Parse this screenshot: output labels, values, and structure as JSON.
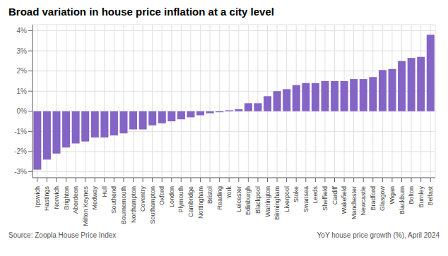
{
  "chart_data": {
    "type": "bar",
    "title": "Broad variation in house price inflation at a city level",
    "annotations": [
      "Source: Zoopla House Price Index",
      "YoY house price growth (%), April 2024"
    ],
    "color": "#8464C4",
    "categories": [
      "Ipswich",
      "Hastings",
      "Norwich",
      "Brighton",
      "Aberdeen",
      "Milton Keynes",
      "Medway",
      "Hull",
      "Southend",
      "Bournemouth",
      "Northampton",
      "Coventry",
      "Southampton",
      "Oxford",
      "London",
      "Plymouth",
      "Cambridge",
      "Nottingham",
      "Bristol",
      "Reading",
      "York",
      "Leicester",
      "Edinburgh",
      "Blackpool",
      "Warrington",
      "Birmingham",
      "Liverpool",
      "Stoke",
      "Swansea",
      "Leeds",
      "Sheffield",
      "Cardiff",
      "Wakefield",
      "Manchester",
      "Newcastle",
      "Bradford",
      "Glasgow",
      "Wigan",
      "Blackburn",
      "Bolton",
      "Burnley",
      "Belfast"
    ],
    "values": [
      -2.9,
      -2.4,
      -2.1,
      -1.8,
      -1.6,
      -1.5,
      -1.3,
      -1.3,
      -1.2,
      -1.1,
      -0.9,
      -0.9,
      -0.7,
      -0.6,
      -0.5,
      -0.4,
      -0.3,
      -0.2,
      -0.1,
      -0.05,
      0.05,
      0.1,
      0.4,
      0.4,
      0.75,
      1.0,
      1.1,
      1.3,
      1.4,
      1.4,
      1.5,
      1.5,
      1.5,
      1.6,
      1.6,
      1.7,
      2.05,
      2.1,
      2.5,
      2.65,
      2.7,
      3.8
    ],
    "ylim": [
      -3.3,
      4.3
    ],
    "yticks": [
      {
        "value": -3,
        "label": "-3%"
      },
      {
        "value": -2,
        "label": "-2%"
      },
      {
        "value": -1,
        "label": "-1%"
      },
      {
        "value": 0,
        "label": "0%"
      },
      {
        "value": 1,
        "label": "1%"
      },
      {
        "value": 2,
        "label": "2%"
      },
      {
        "value": 3,
        "label": "3%"
      },
      {
        "value": 4,
        "label": "4%"
      }
    ],
    "grid": true
  }
}
